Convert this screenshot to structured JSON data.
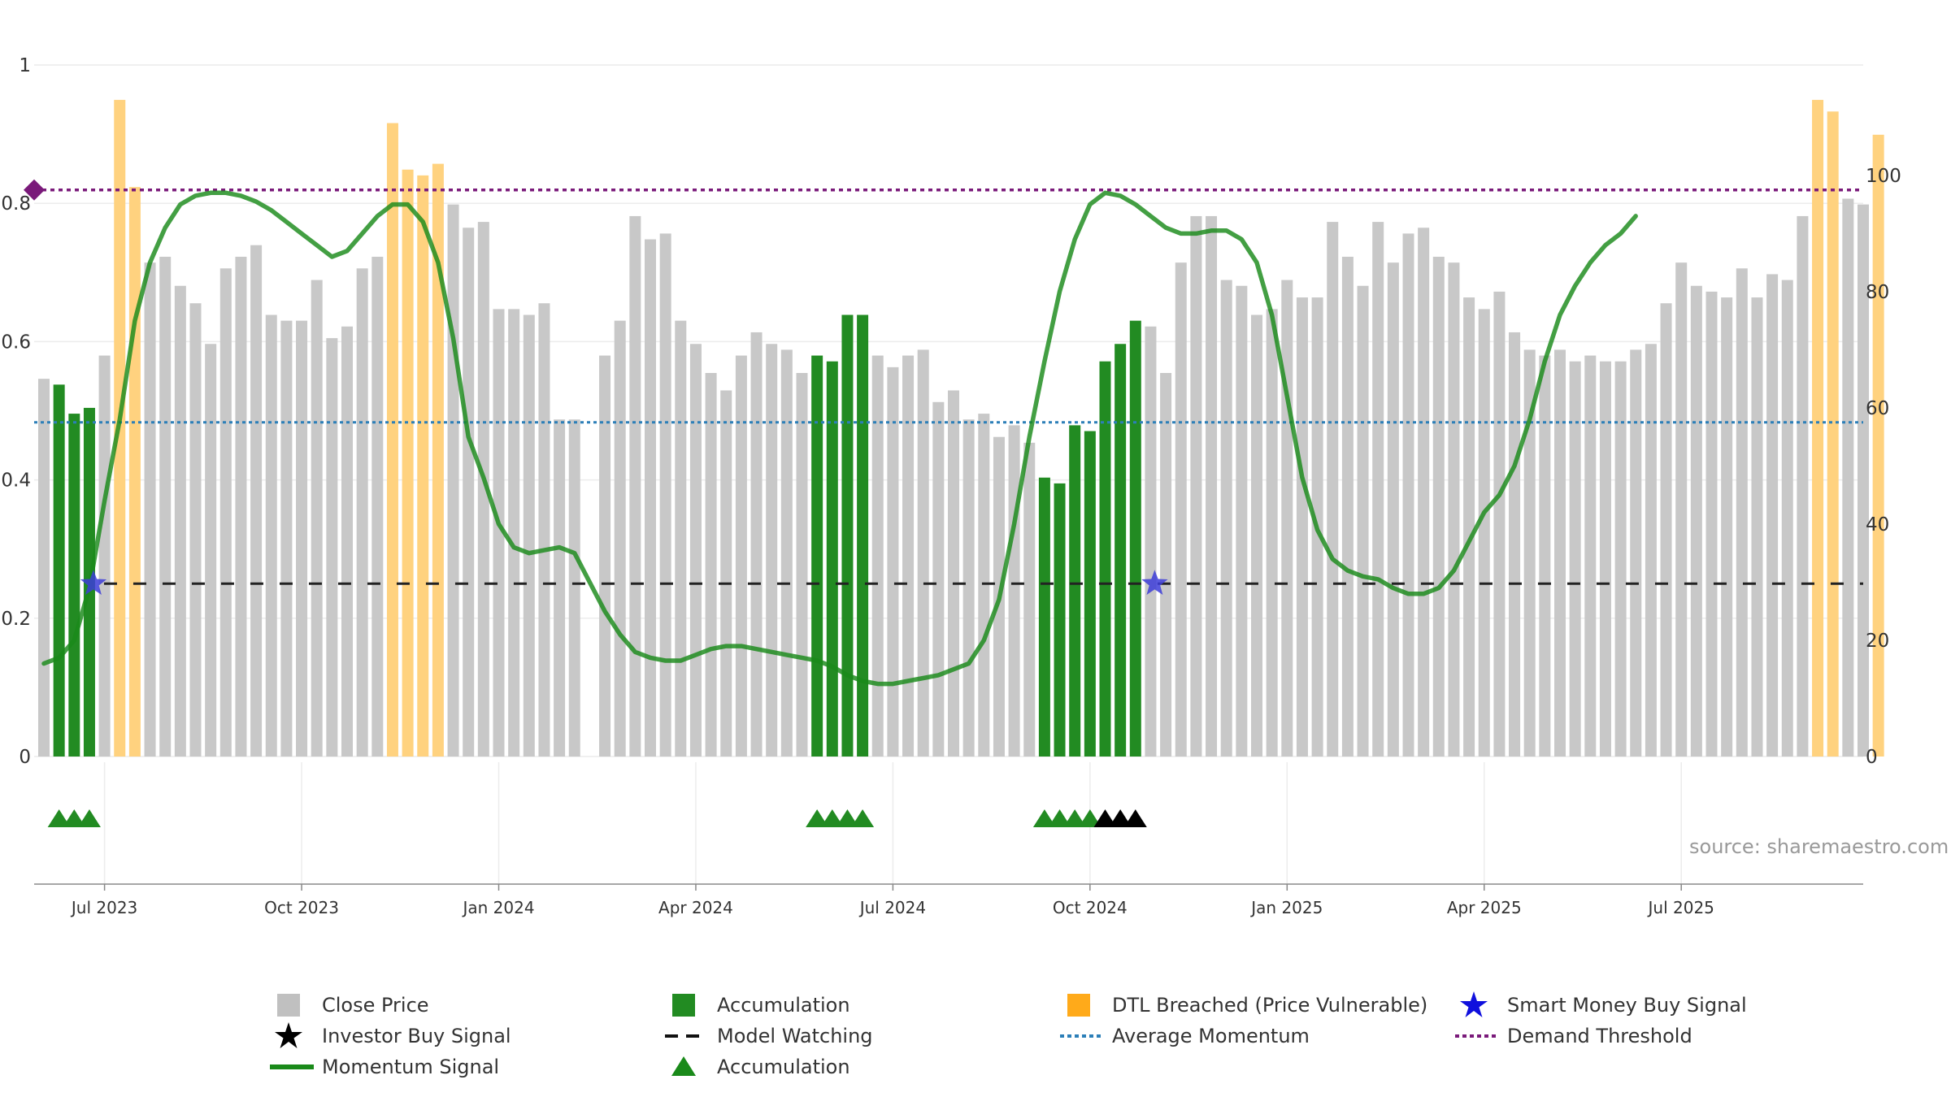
{
  "source_label": "source: sharemaestro.com",
  "colors": {
    "close_price": "#c8c8c8",
    "accumulation": "#228b22",
    "dtl_breached": "#ffd27f",
    "momentum": "#1a8a1a",
    "smart_money": "#3d3dd8",
    "investor": "#000000",
    "model_watching": "#222222",
    "average_momentum": "#2c7fb8",
    "demand_threshold": "#7a1a7a"
  },
  "legend": [
    {
      "label": "Close Price",
      "icon": "grey-square"
    },
    {
      "label": "Accumulation",
      "icon": "green-square"
    },
    {
      "label": "DTL Breached (Price Vulnerable)",
      "icon": "orange-square"
    },
    {
      "label": "Smart Money Buy Signal",
      "icon": "blue-star"
    },
    {
      "label": "Investor Buy Signal",
      "icon": "black-star"
    },
    {
      "label": "Model Watching",
      "icon": "black-dash"
    },
    {
      "label": "Average Momentum",
      "icon": "blue-dotted"
    },
    {
      "label": "Demand Threshold",
      "icon": "purple-dotted"
    },
    {
      "label": "Momentum Signal",
      "icon": "green-line"
    },
    {
      "label": "Accumulation",
      "icon": "green-triangle"
    }
  ],
  "chart_data": {
    "type": "bar",
    "x_tick_labels": [
      "Jul 2023",
      "Oct 2023",
      "Jan 2024",
      "Apr 2024",
      "Jul 2024",
      "Oct 2024",
      "Jan 2025",
      "Apr 2025",
      "Jul 2025"
    ],
    "x_tick_weeks": [
      4,
      17,
      30,
      43,
      56,
      69,
      82,
      95,
      108
    ],
    "left_axis": {
      "ticks": [
        "0",
        "0.2",
        "0.4",
        "0.6",
        "0.8",
        "1"
      ],
      "ylim": [
        0,
        1
      ]
    },
    "right_axis": {
      "ticks": [
        "0",
        "20",
        "40",
        "60",
        "80",
        "100"
      ],
      "ylim": [
        0,
        119
      ]
    },
    "close_price": [
      65,
      64,
      59,
      60,
      69,
      113,
      98,
      85,
      86,
      81,
      78,
      71,
      84,
      86,
      88,
      76,
      75,
      75,
      82,
      72,
      74,
      84,
      86,
      109,
      101,
      100,
      102,
      95,
      91,
      92,
      77,
      77,
      76,
      78,
      58,
      58,
      0,
      69,
      75,
      93,
      89,
      90,
      75,
      71,
      66,
      63,
      69,
      73,
      71,
      70,
      66,
      69,
      68,
      76,
      76,
      69,
      67,
      69,
      70,
      61,
      63,
      58,
      59,
      55,
      57,
      54,
      48,
      47,
      57,
      56,
      68,
      71,
      75,
      74,
      66,
      85,
      93,
      93,
      82,
      81,
      76,
      77,
      82,
      79,
      79,
      92,
      86,
      81,
      92,
      85,
      90,
      91,
      86,
      85,
      79,
      77,
      80,
      73,
      70,
      69,
      70,
      68,
      69,
      68,
      68,
      70,
      71,
      78,
      85,
      81,
      80,
      79,
      84,
      79,
      83,
      82,
      93,
      113,
      111,
      96,
      95,
      107
    ],
    "states": [
      "g",
      "a",
      "a",
      "a",
      "g",
      "d",
      "d",
      "g",
      "g",
      "g",
      "g",
      "g",
      "g",
      "g",
      "g",
      "g",
      "g",
      "g",
      "g",
      "g",
      "g",
      "g",
      "g",
      "d",
      "d",
      "d",
      "d",
      "g",
      "g",
      "g",
      "g",
      "g",
      "g",
      "g",
      "g",
      "g",
      "g",
      "g",
      "g",
      "g",
      "g",
      "g",
      "g",
      "g",
      "g",
      "g",
      "g",
      "g",
      "g",
      "g",
      "g",
      "a",
      "a",
      "a",
      "a",
      "g",
      "g",
      "g",
      "g",
      "g",
      "g",
      "g",
      "g",
      "g",
      "g",
      "g",
      "a",
      "a",
      "a",
      "a",
      "a",
      "a",
      "a",
      "g",
      "g",
      "g",
      "g",
      "g",
      "g",
      "g",
      "g",
      "g",
      "g",
      "g",
      "g",
      "g",
      "g",
      "g",
      "g",
      "g",
      "g",
      "g",
      "g",
      "g",
      "g",
      "g",
      "g",
      "g",
      "g",
      "g",
      "g",
      "g",
      "g",
      "g",
      "g",
      "g",
      "g",
      "g",
      "g",
      "g",
      "g",
      "g",
      "g",
      "g",
      "g",
      "g",
      "g",
      "d",
      "d",
      "g",
      "g",
      "d"
    ],
    "momentum_right_axis": [
      16,
      17,
      20,
      29,
      44,
      58,
      75,
      85,
      91,
      95,
      96.5,
      97,
      97,
      96.5,
      95.5,
      94,
      92,
      90,
      88,
      86,
      87,
      90,
      93,
      95,
      95,
      92,
      85,
      72,
      55,
      48,
      40,
      36,
      35,
      35.5,
      36,
      35,
      30,
      25,
      21,
      18,
      17,
      16.5,
      16.5,
      17.5,
      18.5,
      19,
      19,
      18.5,
      18,
      17.5,
      17,
      16.5,
      15.5,
      14,
      13,
      12.5,
      12.5,
      13,
      13.5,
      14,
      15,
      16,
      20,
      27,
      40,
      55,
      68,
      80,
      89,
      95,
      97,
      96.5,
      95,
      93,
      91,
      90,
      90,
      90.5,
      90.5,
      89,
      85,
      76,
      62,
      48,
      39,
      34,
      32,
      31,
      30.5,
      29,
      28,
      28,
      29,
      32,
      37,
      42,
      45,
      50,
      58,
      68,
      76,
      81,
      85,
      88,
      90,
      93
    ],
    "momentum_start_week": 0,
    "momentum_step": 1,
    "average_momentum_value": 57.5,
    "demand_threshold_value": 97.5,
    "model_watching_value": 0.25,
    "smart_money_buy_weeks": [
      3,
      73
    ],
    "investor_buy_weeks": [
      70,
      71,
      72
    ],
    "accumulation_marker_weeks": [
      1,
      2,
      3,
      51,
      52,
      53,
      54,
      66,
      67,
      68,
      69
    ],
    "grid": true
  }
}
